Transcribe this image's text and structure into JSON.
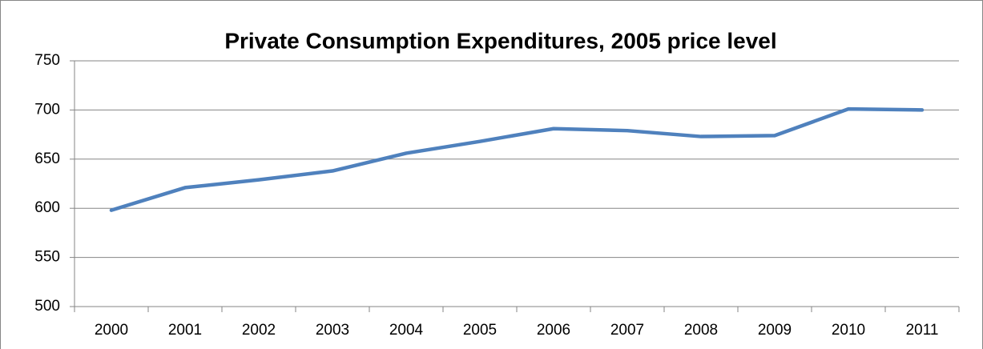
{
  "chart_data": {
    "type": "line",
    "title": "Private Consumption Expenditures, 2005 price level",
    "categories": [
      "2000",
      "2001",
      "2002",
      "2003",
      "2004",
      "2005",
      "2006",
      "2007",
      "2008",
      "2009",
      "2010",
      "2011"
    ],
    "series": [
      {
        "name": "Private Consumption Expenditures",
        "color": "#4f81bd",
        "values": [
          598,
          621,
          629,
          638,
          656,
          668,
          681,
          679,
          673,
          674,
          701,
          700
        ]
      }
    ],
    "ylim": [
      500,
      750
    ],
    "yticks": [
      500,
      550,
      600,
      650,
      700,
      750
    ],
    "grid": true
  }
}
